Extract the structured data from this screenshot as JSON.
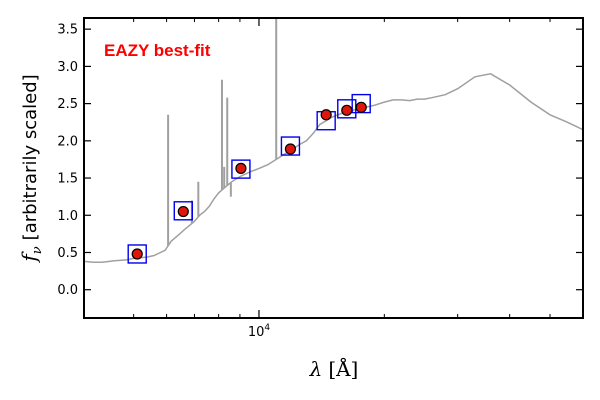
{
  "chart_data": {
    "type": "scatter",
    "title": "",
    "annotation": "EAZY best-fit",
    "xlabel_main": "λ",
    "xlabel_unit": "[Å]",
    "ylabel_main": "f",
    "ylabel_sub": "ν",
    "ylabel_rest": "[arbitrarily scaled]",
    "x_scale": "log",
    "xlim": [
      3800,
      60000
    ],
    "ylim": [
      -0.38,
      3.65
    ],
    "yticks": [
      0.0,
      0.5,
      1.0,
      1.5,
      2.0,
      2.5,
      3.0,
      3.5
    ],
    "ytick_labels": [
      "0.0",
      "0.5",
      "1.0",
      "1.5",
      "2.0",
      "2.5",
      "3.0",
      "3.5"
    ],
    "xtick_major": 10000,
    "xtick_major_label_base": "10",
    "xtick_major_label_exp": "4",
    "xtick_minor": [
      5000,
      6000,
      7000,
      8000,
      9000,
      20000,
      30000,
      40000,
      50000
    ],
    "colors": {
      "template": "#a0a0a0",
      "observed_fill": "#e0160d",
      "observed_edge": "#000000",
      "model_box": "#0000ee",
      "annotation": "#ff0000"
    },
    "series": [
      {
        "name": "template",
        "type": "line",
        "x": [
          3800,
          4000,
          4200,
          4500,
          4800,
          5000,
          5200,
          5400,
          5600,
          5800,
          5950,
          6000,
          6150,
          6300,
          6450,
          6600,
          6800,
          7000,
          7200,
          7400,
          7600,
          7800,
          8000,
          8300,
          8600,
          9000,
          9500,
          10000,
          10500,
          11000,
          11500,
          12000,
          12500,
          13000,
          13500,
          14000,
          15000,
          16000,
          17000,
          18000,
          19000,
          20000,
          21000,
          22000,
          23000,
          24000,
          25000,
          26000,
          27000,
          28000,
          30000,
          33000,
          36000,
          40000,
          45000,
          50000,
          55000,
          60000
        ],
        "y": [
          0.38,
          0.37,
          0.37,
          0.39,
          0.4,
          0.42,
          0.43,
          0.44,
          0.46,
          0.5,
          0.53,
          0.56,
          0.65,
          0.7,
          0.75,
          0.8,
          0.86,
          0.92,
          1.0,
          1.05,
          1.12,
          1.22,
          1.3,
          1.38,
          1.45,
          1.52,
          1.58,
          1.63,
          1.68,
          1.75,
          1.82,
          1.88,
          1.95,
          2.0,
          2.1,
          2.22,
          2.32,
          2.38,
          2.42,
          2.45,
          2.48,
          2.52,
          2.55,
          2.55,
          2.54,
          2.56,
          2.56,
          2.58,
          2.6,
          2.62,
          2.7,
          2.86,
          2.9,
          2.75,
          2.52,
          2.35,
          2.25,
          2.15
        ]
      },
      {
        "name": "emission lines",
        "type": "lines",
        "x": [
          6050,
          6900,
          7150,
          8150,
          8250,
          8390,
          8560,
          11000
        ],
        "y": [
          2.35,
          1.2,
          1.45,
          2.82,
          1.65,
          2.58,
          1.25,
          3.85
        ]
      },
      {
        "name": "model photometry",
        "type": "squares",
        "x": [
          5100,
          6580,
          9050,
          11900,
          14500,
          16250,
          17600
        ],
        "y": [
          0.48,
          1.06,
          1.62,
          1.93,
          2.27,
          2.43,
          2.5
        ]
      },
      {
        "name": "observed photometry",
        "type": "points",
        "x": [
          5100,
          6580,
          9050,
          11900,
          14500,
          16250,
          17600
        ],
        "y": [
          0.48,
          1.05,
          1.63,
          1.89,
          2.35,
          2.41,
          2.45
        ]
      }
    ]
  }
}
